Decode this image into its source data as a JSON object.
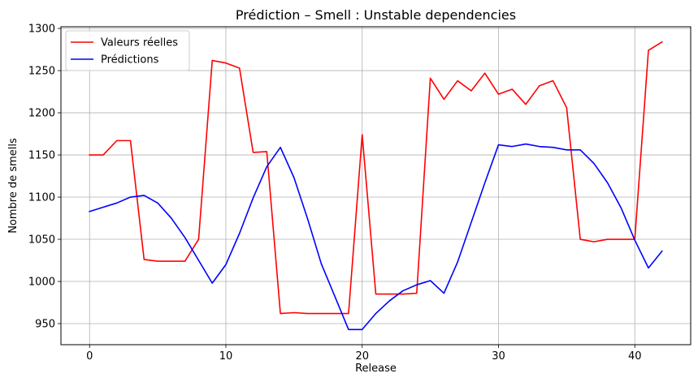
{
  "chart_data": {
    "type": "line",
    "title": "Prédiction – Smell : Unstable dependencies",
    "xlabel": "Release",
    "ylabel": "Nombre de smells",
    "xlim": [
      -2.1,
      44.1
    ],
    "ylim": [
      925,
      1302
    ],
    "xticks": [
      0,
      10,
      20,
      30,
      40
    ],
    "yticks": [
      950,
      1000,
      1050,
      1100,
      1150,
      1200,
      1250,
      1300
    ],
    "grid": true,
    "legend_position": "top-left",
    "x": [
      0,
      1,
      2,
      3,
      4,
      5,
      6,
      7,
      8,
      9,
      10,
      11,
      12,
      13,
      14,
      15,
      16,
      17,
      18,
      19,
      20,
      21,
      22,
      23,
      24,
      25,
      26,
      27,
      28,
      29,
      30,
      31,
      32,
      33,
      34,
      35,
      36,
      37,
      38,
      39,
      40,
      41,
      42
    ],
    "series": [
      {
        "name": "Valeurs réelles",
        "color": "#ff0000",
        "values": [
          1150,
          1150,
          1167,
          1167,
          1026,
          1024,
          1024,
          1024,
          1050,
          1262,
          1259,
          1253,
          1153,
          1154,
          962,
          963,
          962,
          962,
          962,
          962,
          1174,
          985,
          985,
          985,
          986,
          1241,
          1216,
          1238,
          1226,
          1247,
          1222,
          1228,
          1210,
          1232,
          1238,
          1206,
          1050,
          1047,
          1050,
          1050,
          1050,
          1274,
          1284
        ]
      },
      {
        "name": "Prédictions",
        "color": "#0000ff",
        "values": [
          1083,
          1088,
          1093,
          1100,
          1102,
          1093,
          1075,
          1052,
          1025,
          998,
          1020,
          1057,
          1099,
          1136,
          1159,
          1123,
          1074,
          1021,
          982,
          943,
          943,
          962,
          977,
          989,
          996,
          1001,
          986,
          1023,
          1070,
          1117,
          1162,
          1160,
          1163,
          1160,
          1159,
          1156,
          1156,
          1140,
          1117,
          1087,
          1049,
          1016,
          1036
        ]
      }
    ]
  }
}
